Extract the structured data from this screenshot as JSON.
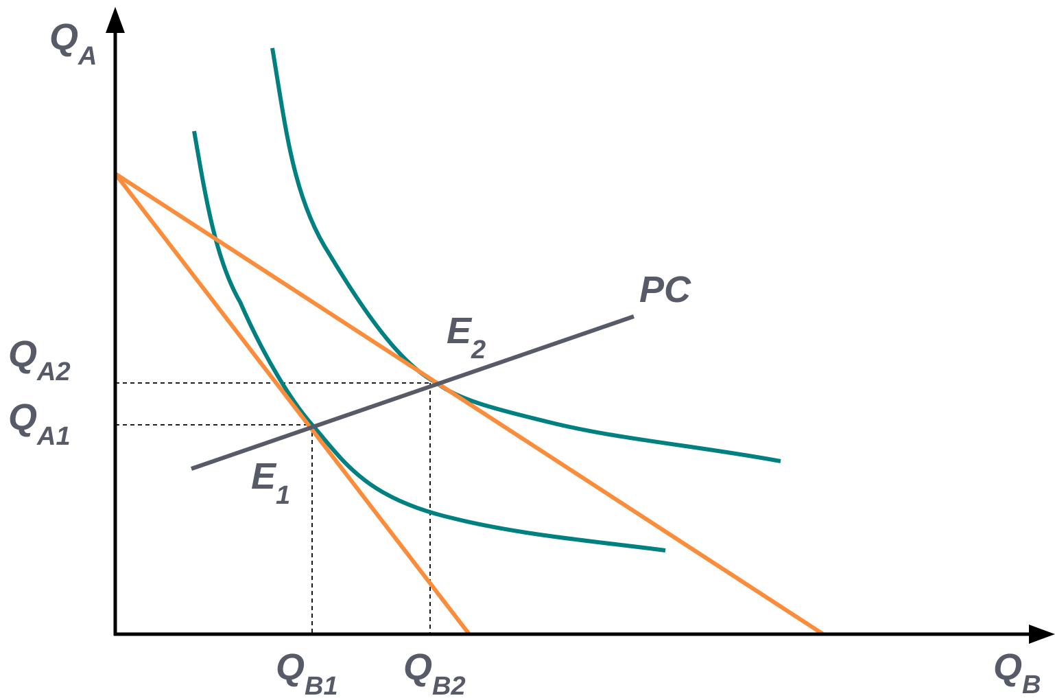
{
  "colors": {
    "axis": "#000000",
    "indifference_curve": "#008080",
    "budget_line": "#FB8C3A",
    "price_consumption_curve": "#575B68",
    "label": "#575B68",
    "guide": "#000000"
  },
  "axes": {
    "y_main": "Q",
    "y_sub": "A",
    "x_main": "Q",
    "x_sub": "B"
  },
  "labels": {
    "qa2_main": "Q",
    "qa2_sub": "A2",
    "qa1_main": "Q",
    "qa1_sub": "A1",
    "qb1_main": "Q",
    "qb1_sub": "B1",
    "qb2_main": "Q",
    "qb2_sub": "B2",
    "e1_main": "E",
    "e1_sub": "1",
    "e2_main": "E",
    "e2_sub": "2",
    "pc": "PC"
  }
}
